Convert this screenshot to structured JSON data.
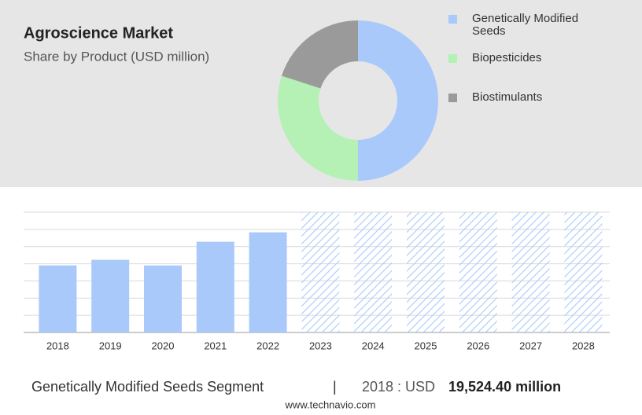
{
  "chart_data": [
    {
      "type": "donut",
      "title": "Agroscience Market",
      "subtitle": "Share by Product (USD million)",
      "categories": [
        "Genetically Modified Seeds",
        "Biopesticides",
        "Biostimulants"
      ],
      "values": [
        50,
        30,
        20
      ],
      "colors": [
        "#a9c9fb",
        "#b5f1b5",
        "#9a9a9a"
      ],
      "legend": "right"
    },
    {
      "type": "bar",
      "categories": [
        "2018",
        "2019",
        "2020",
        "2021",
        "2022",
        "2023",
        "2024",
        "2025",
        "2026",
        "2027",
        "2028"
      ],
      "values": [
        19524.4,
        21150,
        19500,
        26400,
        29150,
        null,
        null,
        null,
        null,
        null,
        null
      ],
      "color": "#a9c9fb",
      "forecast_color": "#a9c9fb",
      "ylim": [
        0,
        35000
      ],
      "yticks": [
        0,
        5000,
        10000,
        15000,
        20000,
        25000,
        30000,
        35000
      ],
      "grid": true
    }
  ],
  "footer": {
    "segment": "Genetically Modified Seeds Segment",
    "separator": "|",
    "period": "2018 : USD",
    "value_label": "19,524.40 million",
    "source": "www.technavio.com"
  }
}
